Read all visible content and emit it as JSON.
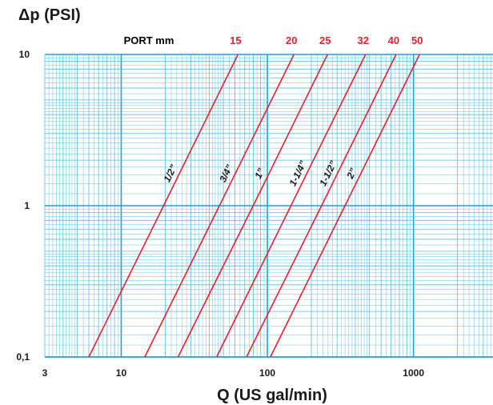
{
  "colors": {
    "background": "#ffffff",
    "grid_major": "#1fa0dc",
    "grid_minor": "#55bce8",
    "series_line": "#e8202a",
    "port_text": "#e8202a",
    "text": "#1a1a1a"
  },
  "chart_data": {
    "type": "line",
    "title": "",
    "xlabel": "Q (US gal/min)",
    "ylabel": "Δp (PSI)",
    "xscale": "log",
    "yscale": "log",
    "xlim": [
      3,
      3500
    ],
    "ylim": [
      0.1,
      10
    ],
    "grid": true,
    "x_ticks": [
      {
        "value": 3,
        "label": "3"
      },
      {
        "value": 10,
        "label": "10"
      },
      {
        "value": 100,
        "label": "100"
      },
      {
        "value": 1000,
        "label": "1000"
      }
    ],
    "y_ticks": [
      {
        "value": 0.1,
        "label": "0,1"
      },
      {
        "value": 1,
        "label": "1"
      },
      {
        "value": 10,
        "label": "10"
      }
    ],
    "port_header": "PORT mm",
    "series": [
      {
        "port_mm": "15",
        "size_label": "1/2”",
        "points": [
          [
            6.0,
            0.1
          ],
          [
            19.5,
            1.0
          ],
          [
            63.0,
            10.0
          ]
        ]
      },
      {
        "port_mm": "20",
        "size_label": "3/4”",
        "points": [
          [
            14.5,
            0.1
          ],
          [
            47.0,
            1.0
          ],
          [
            152.0,
            10.0
          ]
        ]
      },
      {
        "port_mm": "25",
        "size_label": "1”",
        "points": [
          [
            24.5,
            0.1
          ],
          [
            80.0,
            1.0
          ],
          [
            258.0,
            10.0
          ]
        ]
      },
      {
        "port_mm": "32",
        "size_label": "1-1/4”",
        "points": [
          [
            45.0,
            0.1
          ],
          [
            145.0,
            1.0
          ],
          [
            470.0,
            10.0
          ]
        ]
      },
      {
        "port_mm": "40",
        "size_label": "1-1/2”",
        "points": [
          [
            72.0,
            0.1
          ],
          [
            235.0,
            1.0
          ],
          [
            760.0,
            10.0
          ]
        ]
      },
      {
        "port_mm": "50",
        "size_label": "2”",
        "points": [
          [
            105.0,
            0.1
          ],
          [
            340.0,
            1.0
          ],
          [
            1100.0,
            10.0
          ]
        ]
      }
    ]
  }
}
